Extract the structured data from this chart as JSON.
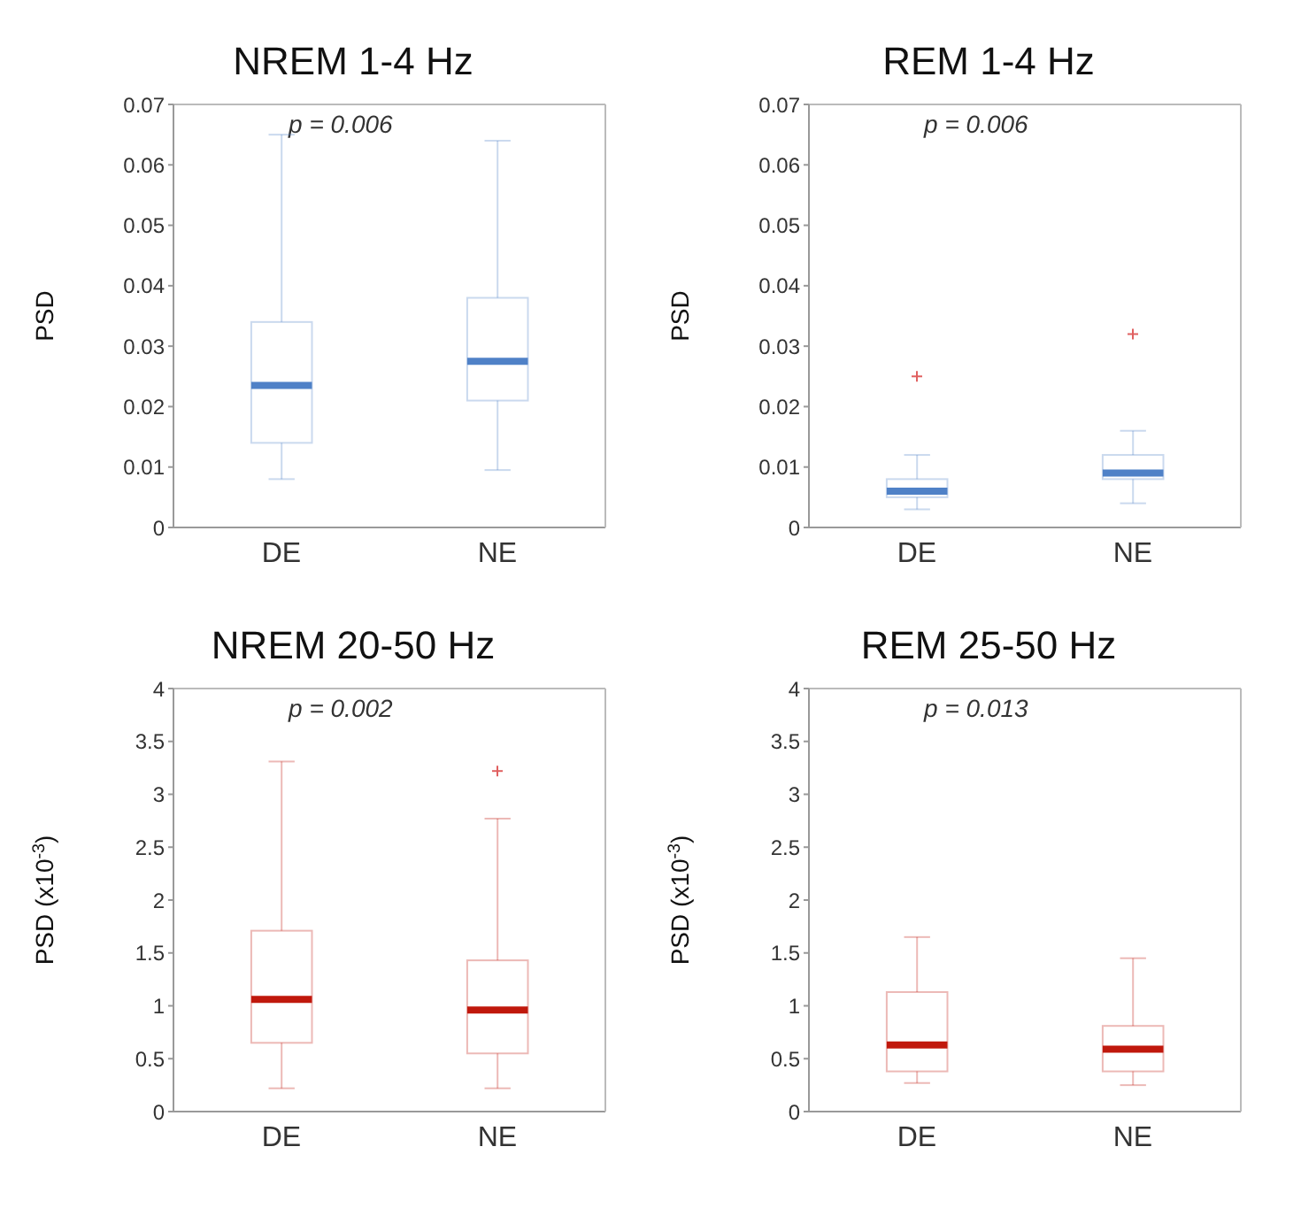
{
  "chart_data": [
    {
      "type": "box",
      "title": "NREM 1-4 Hz",
      "ylabel": "PSD",
      "annotations": [
        "p = 0.006"
      ],
      "categories": [
        "DE",
        "NE"
      ],
      "ylim": [
        0,
        0.07
      ],
      "yticks": [
        0,
        0.01,
        0.02,
        0.03,
        0.04,
        0.05,
        0.06,
        0.07
      ],
      "series": [
        {
          "color": "#4f81c7",
          "boxes": [
            {
              "low": 0.008,
              "q1": 0.014,
              "median": 0.0235,
              "q3": 0.034,
              "high": 0.065
            },
            {
              "low": 0.0095,
              "q1": 0.021,
              "median": 0.0275,
              "q3": 0.038,
              "high": 0.064
            }
          ]
        }
      ]
    },
    {
      "type": "box",
      "title": "REM 1-4 Hz",
      "ylabel": "PSD",
      "annotations": [
        "p = 0.006"
      ],
      "categories": [
        "DE",
        "NE"
      ],
      "ylim": [
        0,
        0.07
      ],
      "yticks": [
        0,
        0.01,
        0.02,
        0.03,
        0.04,
        0.05,
        0.06,
        0.07
      ],
      "series": [
        {
          "color": "#4f81c7",
          "boxes": [
            {
              "low": 0.003,
              "q1": 0.005,
              "median": 0.006,
              "q3": 0.008,
              "high": 0.012,
              "outliers": [
                0.025
              ]
            },
            {
              "low": 0.004,
              "q1": 0.008,
              "median": 0.009,
              "q3": 0.012,
              "high": 0.016,
              "outliers": [
                0.032
              ]
            }
          ]
        }
      ]
    },
    {
      "type": "box",
      "title": "NREM 20-50 Hz",
      "ylabel": "PSD (x10$^{-3}$)",
      "annotations": [
        "p = 0.002"
      ],
      "categories": [
        "DE",
        "NE"
      ],
      "ylim": [
        0,
        4
      ],
      "yticks": [
        0,
        0.5,
        1,
        1.5,
        2,
        2.5,
        3,
        3.5,
        4
      ],
      "series": [
        {
          "color": "#c0180c",
          "boxes": [
            {
              "low": 0.22,
              "q1": 0.65,
              "median": 1.06,
              "q3": 1.71,
              "high": 3.31
            },
            {
              "low": 0.22,
              "q1": 0.55,
              "median": 0.96,
              "q3": 1.43,
              "high": 2.77,
              "outliers": [
                3.22
              ]
            }
          ]
        }
      ]
    },
    {
      "type": "box",
      "title": "REM 25-50 Hz",
      "ylabel": "PSD (x10$^{-3}$)",
      "annotations": [
        "p = 0.013"
      ],
      "categories": [
        "DE",
        "NE"
      ],
      "ylim": [
        0,
        4
      ],
      "yticks": [
        0,
        0.5,
        1,
        1.5,
        2,
        2.5,
        3,
        3.5,
        4
      ],
      "series": [
        {
          "color": "#c0180c",
          "boxes": [
            {
              "low": 0.27,
              "q1": 0.38,
              "median": 0.63,
              "q3": 1.13,
              "high": 1.65
            },
            {
              "low": 0.25,
              "q1": 0.38,
              "median": 0.59,
              "q3": 0.81,
              "high": 1.45
            }
          ]
        }
      ]
    }
  ]
}
